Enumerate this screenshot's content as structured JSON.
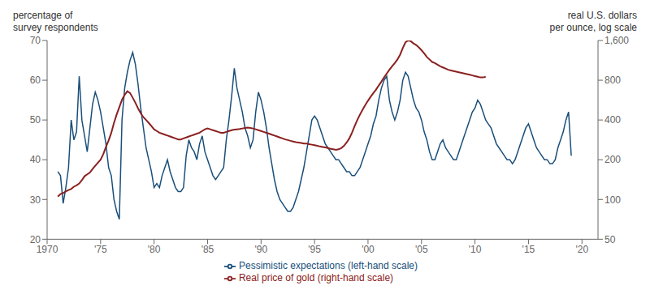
{
  "chart_data": {
    "type": "line",
    "ylabel": "percentage of\nsurvey respondents",
    "y2label": "real U.S. dollars\nper ounce, log scale",
    "xlim": [
      1970,
      2021.5
    ],
    "xticks": [
      1970,
      {
        "value": 1975,
        "label": "'75"
      },
      {
        "value": 1980,
        "label": "'80"
      },
      {
        "value": 1985,
        "label": "'85"
      },
      {
        "value": 1990,
        "label": "'90"
      },
      {
        "value": 1995,
        "label": "'95"
      },
      {
        "value": 2000,
        "label": "'00"
      },
      {
        "value": 2005,
        "label": "'05"
      },
      {
        "value": 2010,
        "label": "'10"
      },
      {
        "value": 2015,
        "label": "'15"
      },
      {
        "value": 2020,
        "label": "'20"
      }
    ],
    "ylim": [
      20,
      70
    ],
    "yticks": [
      20,
      30,
      40,
      50,
      60,
      70
    ],
    "y2lim": [
      50,
      1600
    ],
    "y2ticks": [
      50,
      100,
      200,
      400,
      800,
      {
        "value": 1600,
        "label": "1,600"
      }
    ],
    "log": "y2",
    "grid": false,
    "legend": "bottom",
    "series": [
      {
        "name": "Pessimistic expectations (left-hand scale)",
        "color": "#1a4f7a",
        "axis": "y",
        "x": [
          1971,
          1971.25,
          1971.5,
          1971.75,
          1972,
          1972.25,
          1972.5,
          1972.75,
          1973,
          1973.25,
          1973.5,
          1973.75,
          1974,
          1974.25,
          1974.5,
          1974.75,
          1975,
          1975.25,
          1975.5,
          1975.75,
          1976,
          1976.25,
          1976.5,
          1976.75,
          1977,
          1977.25,
          1977.5,
          1977.75,
          1978,
          1978.25,
          1978.5,
          1978.75,
          1979,
          1979.25,
          1979.5,
          1979.75,
          1980,
          1980.25,
          1980.5,
          1980.75,
          1981,
          1981.25,
          1981.5,
          1981.75,
          1982,
          1982.25,
          1982.5,
          1982.75,
          1983,
          1983.25,
          1983.5,
          1983.75,
          1984,
          1984.25,
          1984.5,
          1984.75,
          1985,
          1985.25,
          1985.5,
          1985.75,
          1986,
          1986.25,
          1986.5,
          1986.75,
          1987,
          1987.25,
          1987.5,
          1987.75,
          1988,
          1988.25,
          1988.5,
          1988.75,
          1989,
          1989.25,
          1989.5,
          1989.75,
          1990,
          1990.25,
          1990.5,
          1990.75,
          1991,
          1991.25,
          1991.5,
          1991.75,
          1992,
          1992.25,
          1992.5,
          1992.75,
          1993,
          1993.25,
          1993.5,
          1993.75,
          1994,
          1994.25,
          1994.5,
          1994.75,
          1995,
          1995.25,
          1995.5,
          1995.75,
          1996,
          1996.25,
          1996.5,
          1996.75,
          1997,
          1997.25,
          1997.5,
          1997.75,
          1998,
          1998.25,
          1998.5,
          1998.75,
          1999,
          1999.25,
          1999.5,
          1999.75,
          2000,
          2000.25,
          2000.5,
          2000.75,
          2001,
          2001.25,
          2001.5,
          2001.75,
          2002,
          2002.25,
          2002.5,
          2002.75,
          2003,
          2003.25,
          2003.5,
          2003.75,
          2004,
          2004.25,
          2004.5,
          2004.75,
          2005,
          2005.25,
          2005.5,
          2005.75,
          2006,
          2006.25,
          2006.5,
          2006.75,
          2007,
          2007.25,
          2007.5,
          2007.75,
          2008,
          2008.25,
          2008.5,
          2008.75,
          2009,
          2009.25,
          2009.5,
          2009.75,
          2010,
          2010.25,
          2010.5,
          2010.75,
          2011,
          2011.25,
          2011.5,
          2011.75,
          2012,
          2012.25,
          2012.5,
          2012.75,
          2013,
          2013.25,
          2013.5,
          2013.75,
          2014,
          2014.25,
          2014.5,
          2014.75,
          2015,
          2015.25,
          2015.5,
          2015.75,
          2016,
          2016.25,
          2016.5,
          2016.75,
          2017,
          2017.25,
          2017.5,
          2017.75,
          2018,
          2018.25,
          2018.5,
          2018.75,
          2019
        ],
        "values": [
          37,
          36,
          29,
          33,
          38,
          50,
          45,
          47,
          61,
          50,
          46,
          42,
          48,
          54,
          57,
          55,
          52,
          48,
          44,
          38,
          36,
          30,
          27,
          25,
          50,
          58,
          62,
          65,
          67,
          64,
          59,
          53,
          48,
          43,
          40,
          37,
          33,
          34,
          33,
          36,
          38,
          40,
          37,
          35,
          33,
          32,
          32,
          33,
          41,
          45,
          43,
          42,
          40,
          44,
          46,
          42,
          40,
          38,
          36,
          35,
          36,
          37,
          38,
          45,
          50,
          56,
          63,
          58,
          55,
          52,
          48,
          46,
          43,
          45,
          52,
          57,
          55,
          52,
          48,
          43,
          39,
          35,
          32,
          30,
          29,
          28,
          27,
          27,
          28,
          30,
          32,
          35,
          38,
          42,
          46,
          50,
          51,
          50,
          48,
          46,
          44,
          43,
          42,
          41,
          40,
          40,
          39,
          38,
          37,
          37,
          36,
          36,
          37,
          38,
          40,
          42,
          44,
          46,
          49,
          51,
          55,
          58,
          60,
          61,
          55,
          52,
          50,
          52,
          55,
          60,
          62,
          61,
          58,
          55,
          53,
          52,
          50,
          47,
          45,
          42,
          40,
          40,
          42,
          44,
          45,
          43,
          42,
          41,
          40,
          40,
          42,
          44,
          46,
          48,
          50,
          52,
          53,
          55,
          54,
          52,
          50,
          49,
          48,
          46,
          44,
          43,
          42,
          41,
          40,
          40,
          39,
          40,
          42,
          44,
          46,
          48,
          49,
          47,
          45,
          43,
          42,
          41,
          40,
          40,
          39,
          39,
          40,
          43,
          45,
          47,
          50,
          52,
          41
        ]
      },
      {
        "name": "Real price of gold (right-hand scale)",
        "color": "#8b2020",
        "axis": "y2",
        "x": [
          1971,
          1971.25,
          1971.5,
          1971.75,
          1972,
          1972.25,
          1972.5,
          1972.75,
          1973,
          1973.25,
          1973.5,
          1973.75,
          1974,
          1974.25,
          1974.5,
          1974.75,
          1975,
          1975.25,
          1975.5,
          1975.75,
          1976,
          1976.25,
          1976.5,
          1976.75,
          1977,
          1977.25,
          1977.5,
          1977.75,
          1978,
          1978.25,
          1978.5,
          1978.75,
          1979,
          1979.25,
          1979.5,
          1979.75,
          1980,
          1980.25,
          1980.5,
          1980.75,
          1981,
          1981.25,
          1981.5,
          1981.75,
          1982,
          1982.25,
          1982.5,
          1982.75,
          1983,
          1983.25,
          1983.5,
          1983.75,
          1984,
          1984.25,
          1984.5,
          1984.75,
          1985,
          1985.25,
          1985.5,
          1985.75,
          1986,
          1986.25,
          1986.5,
          1986.75,
          1987,
          1987.25,
          1987.5,
          1987.75,
          1988,
          1988.25,
          1988.5,
          1988.75,
          1989,
          1989.25,
          1989.5,
          1989.75,
          1990,
          1990.25,
          1990.5,
          1990.75,
          1991,
          1991.25,
          1991.5,
          1991.75,
          1992,
          1992.25,
          1992.5,
          1992.75,
          1993,
          1993.25,
          1993.5,
          1993.75,
          1994,
          1994.25,
          1994.5,
          1994.75,
          1995,
          1995.25,
          1995.5,
          1995.75,
          1996,
          1996.25,
          1996.5,
          1996.75,
          1997,
          1997.25,
          1997.5,
          1997.75,
          1998,
          1998.25,
          1998.5,
          1998.75,
          1999,
          1999.25,
          1999.5,
          1999.75,
          2000,
          2000.25,
          2000.5,
          2000.75,
          2001,
          2001.25,
          2001.5,
          2001.75,
          2002,
          2002.25,
          2002.5,
          2002.75,
          2003,
          2003.25,
          2003.5,
          2003.75,
          2004,
          2004.25,
          2004.5,
          2004.75,
          2005,
          2005.25,
          2005.5,
          2005.75,
          2006,
          2006.25,
          2006.5,
          2006.75,
          2007,
          2007.25,
          2007.5,
          2007.75,
          2008,
          2008.25,
          2008.5,
          2008.75,
          2009,
          2009.25,
          2009.5,
          2009.75,
          2010,
          2010.25,
          2010.5,
          2010.75,
          2011
        ],
        "values": [
          105,
          110,
          112,
          115,
          118,
          120,
          125,
          128,
          132,
          140,
          150,
          155,
          160,
          170,
          180,
          190,
          200,
          220,
          250,
          280,
          320,
          380,
          440,
          500,
          570,
          620,
          660,
          640,
          590,
          540,
          490,
          450,
          420,
          400,
          380,
          360,
          340,
          330,
          320,
          315,
          310,
          305,
          300,
          295,
          290,
          285,
          285,
          290,
          295,
          300,
          305,
          310,
          315,
          320,
          330,
          340,
          345,
          340,
          335,
          330,
          325,
          320,
          320,
          325,
          330,
          335,
          338,
          340,
          342,
          345,
          348,
          350,
          348,
          345,
          340,
          335,
          330,
          325,
          320,
          315,
          310,
          305,
          300,
          295,
          290,
          285,
          282,
          278,
          275,
          272,
          270,
          268,
          265,
          265,
          262,
          260,
          258,
          255,
          252,
          250,
          248,
          245,
          242,
          240,
          238,
          240,
          245,
          255,
          270,
          290,
          320,
          360,
          400,
          440,
          480,
          520,
          560,
          600,
          640,
          680,
          730,
          780,
          840,
          900,
          960,
          1020,
          1080,
          1150,
          1250,
          1400,
          1550,
          1600,
          1580,
          1520,
          1480,
          1420,
          1350,
          1280,
          1200,
          1150,
          1100,
          1080,
          1050,
          1020,
          1000,
          980,
          960,
          950,
          940,
          930,
          920,
          910,
          900,
          890,
          880,
          870,
          860,
          850,
          840,
          840,
          850
        ]
      }
    ]
  }
}
